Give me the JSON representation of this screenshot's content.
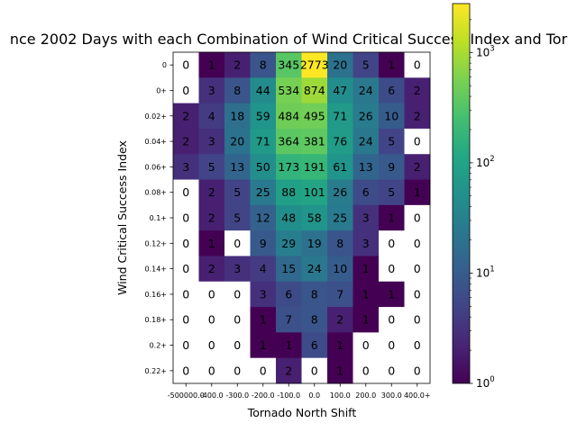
{
  "chart_data": {
    "type": "heatmap",
    "title": "nce 2002 Days with each Combination of Wind Critical Success Index and Tor",
    "xlabel": "Tornado North Shift",
    "ylabel": "Wind Critical Success Index",
    "x_tick_labels": [
      "-500000.0",
      "-400.0",
      "-300.0",
      "-200.0",
      "-100.0",
      "0.0",
      "100.0",
      "200.0",
      "300.0",
      "400.0+"
    ],
    "x_tick_labels_display": [
      "-500000.0",
      "-400.0",
      "-300.0",
      "-200.0",
      "-100.0",
      "0.0",
      "100.0",
      "200.0",
      "300.0",
      "400.0+"
    ],
    "y_tick_labels": [
      "0",
      "0+",
      "0.02+",
      "0.04+",
      "0.06+",
      "0.08+",
      "0.1+",
      "0.12+",
      "0.14+",
      "0.16+",
      "0.18+",
      "0.2+",
      "0.22+"
    ],
    "values": [
      [
        0,
        1,
        2,
        8,
        345,
        2773,
        20,
        5,
        1,
        0
      ],
      [
        0,
        3,
        8,
        44,
        534,
        874,
        47,
        24,
        6,
        2
      ],
      [
        2,
        4,
        18,
        59,
        484,
        495,
        71,
        26,
        10,
        2
      ],
      [
        2,
        3,
        20,
        71,
        364,
        381,
        76,
        24,
        5,
        0
      ],
      [
        3,
        5,
        13,
        50,
        173,
        191,
        61,
        13,
        9,
        2
      ],
      [
        0,
        2,
        5,
        25,
        88,
        101,
        26,
        6,
        5,
        1
      ],
      [
        0,
        2,
        5,
        12,
        48,
        58,
        25,
        3,
        1,
        0
      ],
      [
        0,
        1,
        0,
        9,
        29,
        19,
        8,
        3,
        0,
        0
      ],
      [
        0,
        2,
        3,
        4,
        15,
        24,
        10,
        1,
        0,
        0
      ],
      [
        0,
        0,
        0,
        3,
        6,
        8,
        7,
        1,
        1,
        0
      ],
      [
        0,
        0,
        0,
        1,
        7,
        8,
        2,
        1,
        0,
        0
      ],
      [
        0,
        0,
        0,
        1,
        1,
        6,
        1,
        0,
        0,
        0
      ],
      [
        0,
        0,
        0,
        0,
        2,
        0,
        1,
        0,
        0,
        0
      ]
    ],
    "colorbar": {
      "scale": "log",
      "min": 1,
      "max": 2773,
      "colormap": "viridis",
      "tick_labels": [
        "10^0",
        "10^1",
        "10^2",
        "10^3"
      ]
    },
    "zero_cell_color": "#ffffff",
    "grid": false
  }
}
